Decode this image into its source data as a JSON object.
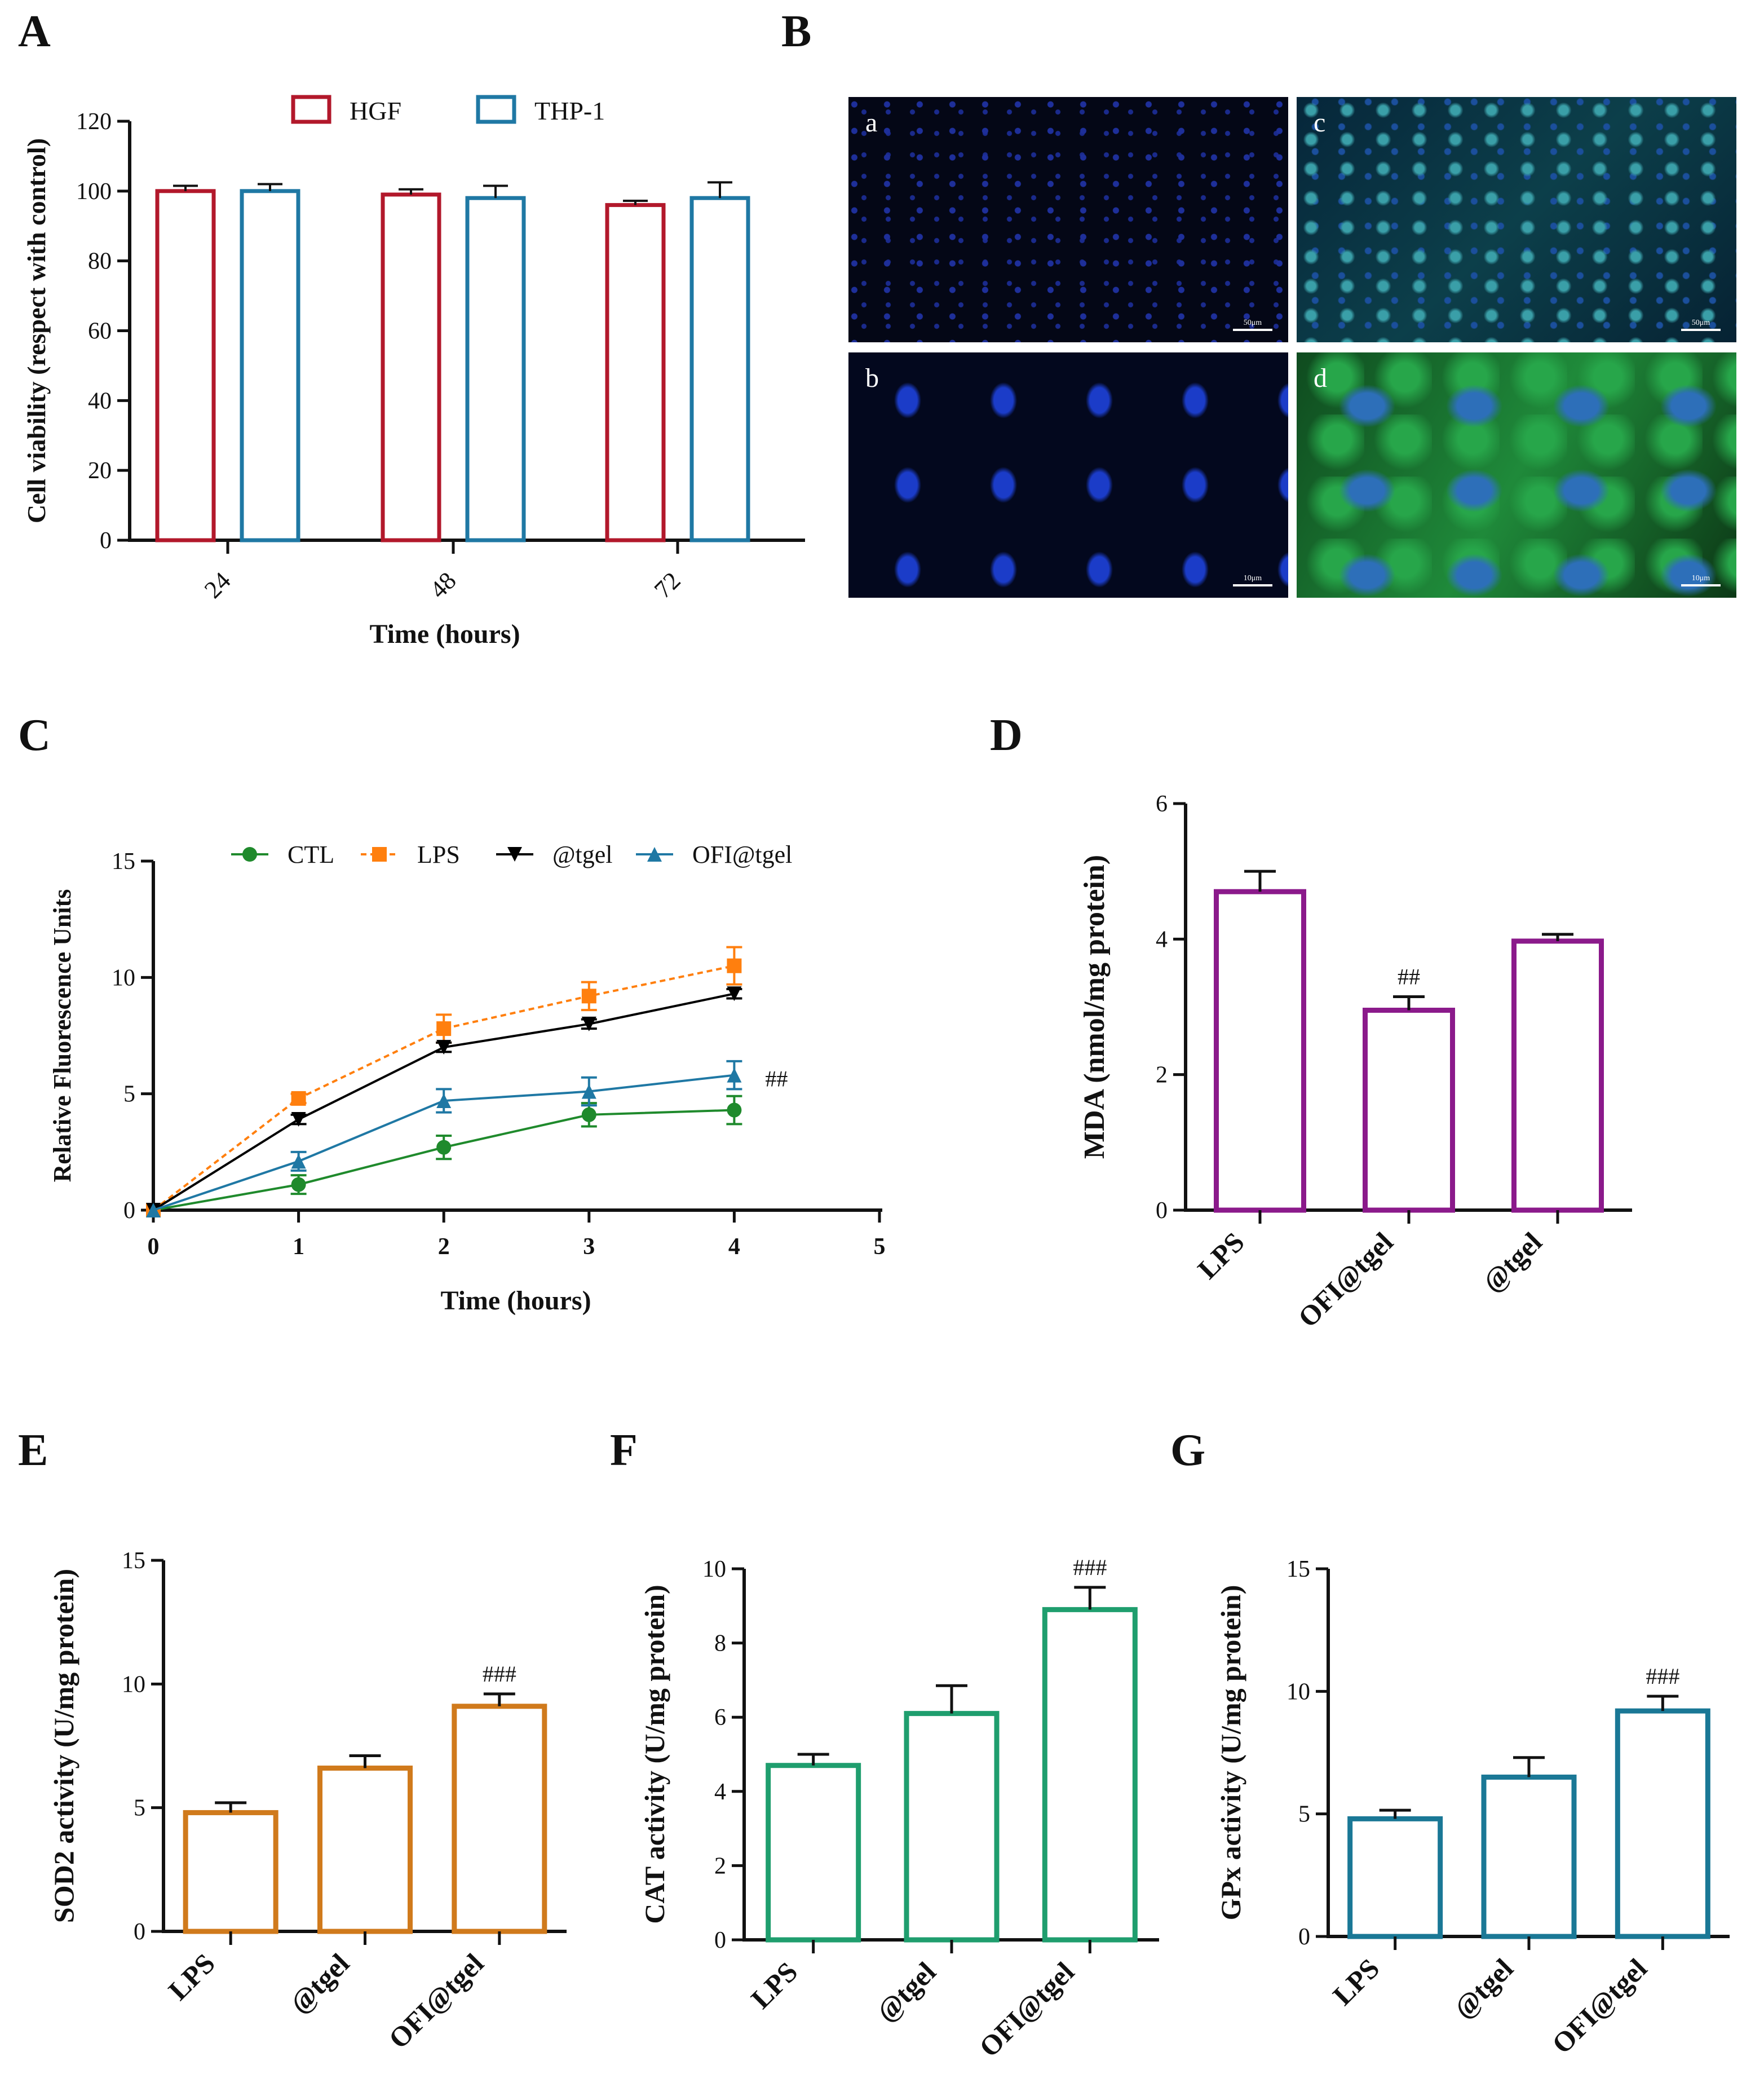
{
  "panels": {
    "A": "A",
    "B": "B",
    "C": "C",
    "D": "D",
    "E": "E",
    "F": "F",
    "G": "G"
  },
  "micrographs": {
    "tiles": [
      {
        "label": "a",
        "scale": "50μm"
      },
      {
        "label": "c",
        "scale": "50μm"
      },
      {
        "label": "b",
        "scale": "10μm"
      },
      {
        "label": "d",
        "scale": "10μm"
      }
    ]
  },
  "chart_data": [
    {
      "id": "A",
      "type": "bar",
      "categories": [
        "24",
        "48",
        "72"
      ],
      "series": [
        {
          "name": "HGF",
          "values": [
            100,
            99,
            96
          ],
          "errors": [
            1.5,
            1.5,
            1.2
          ],
          "color": "#b2182b"
        },
        {
          "name": "THP-1",
          "values": [
            100,
            98,
            98
          ],
          "errors": [
            2.0,
            3.5,
            4.5
          ],
          "color": "#1f78a4"
        }
      ],
      "xlabel": "Time (hours)",
      "ylabel": "Cell viability (respect with control)",
      "ylim": [
        0,
        120
      ],
      "yticks": [
        0,
        20,
        40,
        60,
        80,
        100,
        120
      ],
      "legend": "top",
      "grid": false
    },
    {
      "id": "C",
      "type": "line",
      "x": [
        0,
        1,
        2,
        3,
        4
      ],
      "series": [
        {
          "name": "CTL",
          "values": [
            0,
            1.1,
            2.7,
            4.1,
            4.3
          ],
          "errors": [
            0,
            0.4,
            0.5,
            0.5,
            0.6
          ],
          "color": "#1f8a2c",
          "marker": "circle",
          "dash": false
        },
        {
          "name": "LPS",
          "values": [
            0,
            4.8,
            7.8,
            9.2,
            10.5
          ],
          "errors": [
            0,
            0.2,
            0.6,
            0.6,
            0.8
          ],
          "color": "#ff7f0e",
          "marker": "square",
          "dash": true
        },
        {
          "name": "@tgel",
          "values": [
            0,
            3.9,
            7.0,
            8.0,
            9.3
          ],
          "errors": [
            0,
            0.2,
            0.2,
            0.2,
            0.2
          ],
          "color": "#000000",
          "marker": "triangle-down",
          "dash": false
        },
        {
          "name": "OFI@tgel",
          "values": [
            0,
            2.1,
            4.7,
            5.1,
            5.8
          ],
          "errors": [
            0,
            0.4,
            0.5,
            0.6,
            0.6
          ],
          "color": "#1f78a4",
          "marker": "triangle-up",
          "dash": false
        }
      ],
      "annotation": "##",
      "xlabel": "Time (hours)",
      "ylabel": "Relative Fluorescence Units",
      "xlim": [
        0,
        5
      ],
      "xticks": [
        0,
        1,
        2,
        3,
        4,
        5
      ],
      "ylim": [
        0,
        15
      ],
      "yticks": [
        0,
        5,
        10,
        15
      ],
      "legend": "top",
      "grid": false
    },
    {
      "id": "D",
      "type": "bar",
      "categories": [
        "LPS",
        "OFI@tgel",
        "@tgel"
      ],
      "values": [
        4.7,
        2.95,
        3.97
      ],
      "errors": [
        0.3,
        0.2,
        0.1
      ],
      "annotations": [
        "",
        "##",
        ""
      ],
      "color": "#8b1a8b",
      "xlabel": "",
      "ylabel": "MDA (nmol/mg protein)",
      "ylim": [
        0,
        6
      ],
      "yticks": [
        0,
        2,
        4,
        6
      ],
      "grid": false
    },
    {
      "id": "E",
      "type": "bar",
      "categories": [
        "LPS",
        "@tgel",
        "OFI@tgel"
      ],
      "values": [
        4.8,
        6.6,
        9.1
      ],
      "errors": [
        0.4,
        0.5,
        0.5
      ],
      "annotations": [
        "",
        "",
        "###"
      ],
      "color": "#d07a1c",
      "xlabel": "",
      "ylabel": "SOD2 activity (U/mg protein)",
      "ylim": [
        0,
        15
      ],
      "yticks": [
        0,
        5,
        10,
        15
      ],
      "grid": false
    },
    {
      "id": "F",
      "type": "bar",
      "categories": [
        "LPS",
        "@tgel",
        "OFI@tgel"
      ],
      "values": [
        4.7,
        6.1,
        8.9
      ],
      "errors": [
        0.3,
        0.75,
        0.6
      ],
      "annotations": [
        "",
        "",
        "###"
      ],
      "color": "#1f9e6e",
      "xlabel": "",
      "ylabel": "CAT activity (U/mg protein)",
      "ylim": [
        0,
        10
      ],
      "yticks": [
        0,
        2,
        4,
        6,
        8,
        10
      ],
      "grid": false
    },
    {
      "id": "G",
      "type": "bar",
      "categories": [
        "LPS",
        "@tgel",
        "OFI@tgel"
      ],
      "values": [
        4.8,
        6.5,
        9.2
      ],
      "errors": [
        0.35,
        0.8,
        0.6
      ],
      "annotations": [
        "",
        "",
        "###"
      ],
      "color": "#1a7896",
      "xlabel": "",
      "ylabel": "GPx activity (U/mg protein)",
      "ylim": [
        0,
        15
      ],
      "yticks": [
        0,
        5,
        10,
        15
      ],
      "grid": false
    }
  ]
}
